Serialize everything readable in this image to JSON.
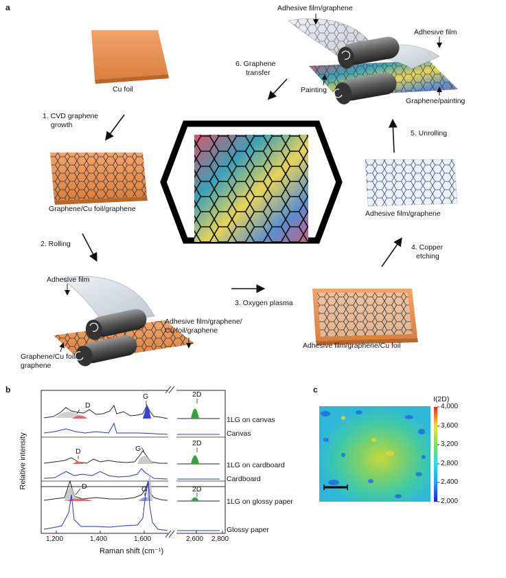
{
  "panels": {
    "a": "a",
    "b": "b",
    "c": "c"
  },
  "panel_a": {
    "cu_foil": "Cu foil",
    "step1": [
      "1. CVD graphene",
      "growth"
    ],
    "graphene_cu": "Graphene/Cu foil/graphene",
    "step2": "2. Rolling",
    "adhesive_film_left": "Adhesive film",
    "graphene_cu_foil_left": [
      "Graphene/Cu foil/",
      "graphene"
    ],
    "adhesive_stack_left": [
      "Adhesive film/graphene/",
      "Cu foil/graphene"
    ],
    "step3": "3. Oxygen plasma",
    "adhesive_stack_right": "Adhesive film/graphene/Cu foil",
    "step4": [
      "4. Copper",
      "etching"
    ],
    "adhesive_graphene": "Adhesive film/graphene",
    "step5": "5. Unrolling",
    "top_adhesive_graphene": "Adhesive film/graphene",
    "top_adhesive_film": "Adhesive film",
    "painting": "Painting",
    "graphene_painting": "Graphene/painting",
    "step6": [
      "6. Graphene",
      "transfer"
    ]
  },
  "chart_data": [
    {
      "type": "line",
      "panel": "b",
      "xlabel": "Raman shift (cm⁻¹)",
      "ylabel": "Relative intensity",
      "x_ticks": [
        "1,200",
        "1,400",
        "1,600",
        "2,600",
        "2,800"
      ],
      "x_break": [
        1700,
        2500
      ],
      "xlim": [
        1150,
        2800
      ],
      "series": [
        {
          "name": "1LG on canvas",
          "color": "#222222"
        },
        {
          "name": "Canvas",
          "color": "#2233cc"
        },
        {
          "name": "1LG on cardboard",
          "color": "#222222"
        },
        {
          "name": "Cardboard",
          "color": "#2233cc"
        },
        {
          "name": "1LG on glossy paper",
          "color": "#222222"
        },
        {
          "name": "Glossy paper",
          "color": "#2233cc"
        }
      ],
      "peak_labels": [
        "D",
        "G",
        "2D"
      ],
      "peak_positions": {
        "D": 1350,
        "G": 1585,
        "2D": 2680
      },
      "peak_colors": {
        "D": "#e03030",
        "G": "#2b3de0",
        "2D": "#2e9a30"
      }
    },
    {
      "type": "heatmap",
      "panel": "c",
      "colorbar_label": "I(2D)",
      "colorbar_ticks": [
        "4,000",
        "3,600",
        "3,200",
        "2,800",
        "2,400",
        "2,000"
      ],
      "range": [
        2000,
        4000
      ]
    }
  ]
}
